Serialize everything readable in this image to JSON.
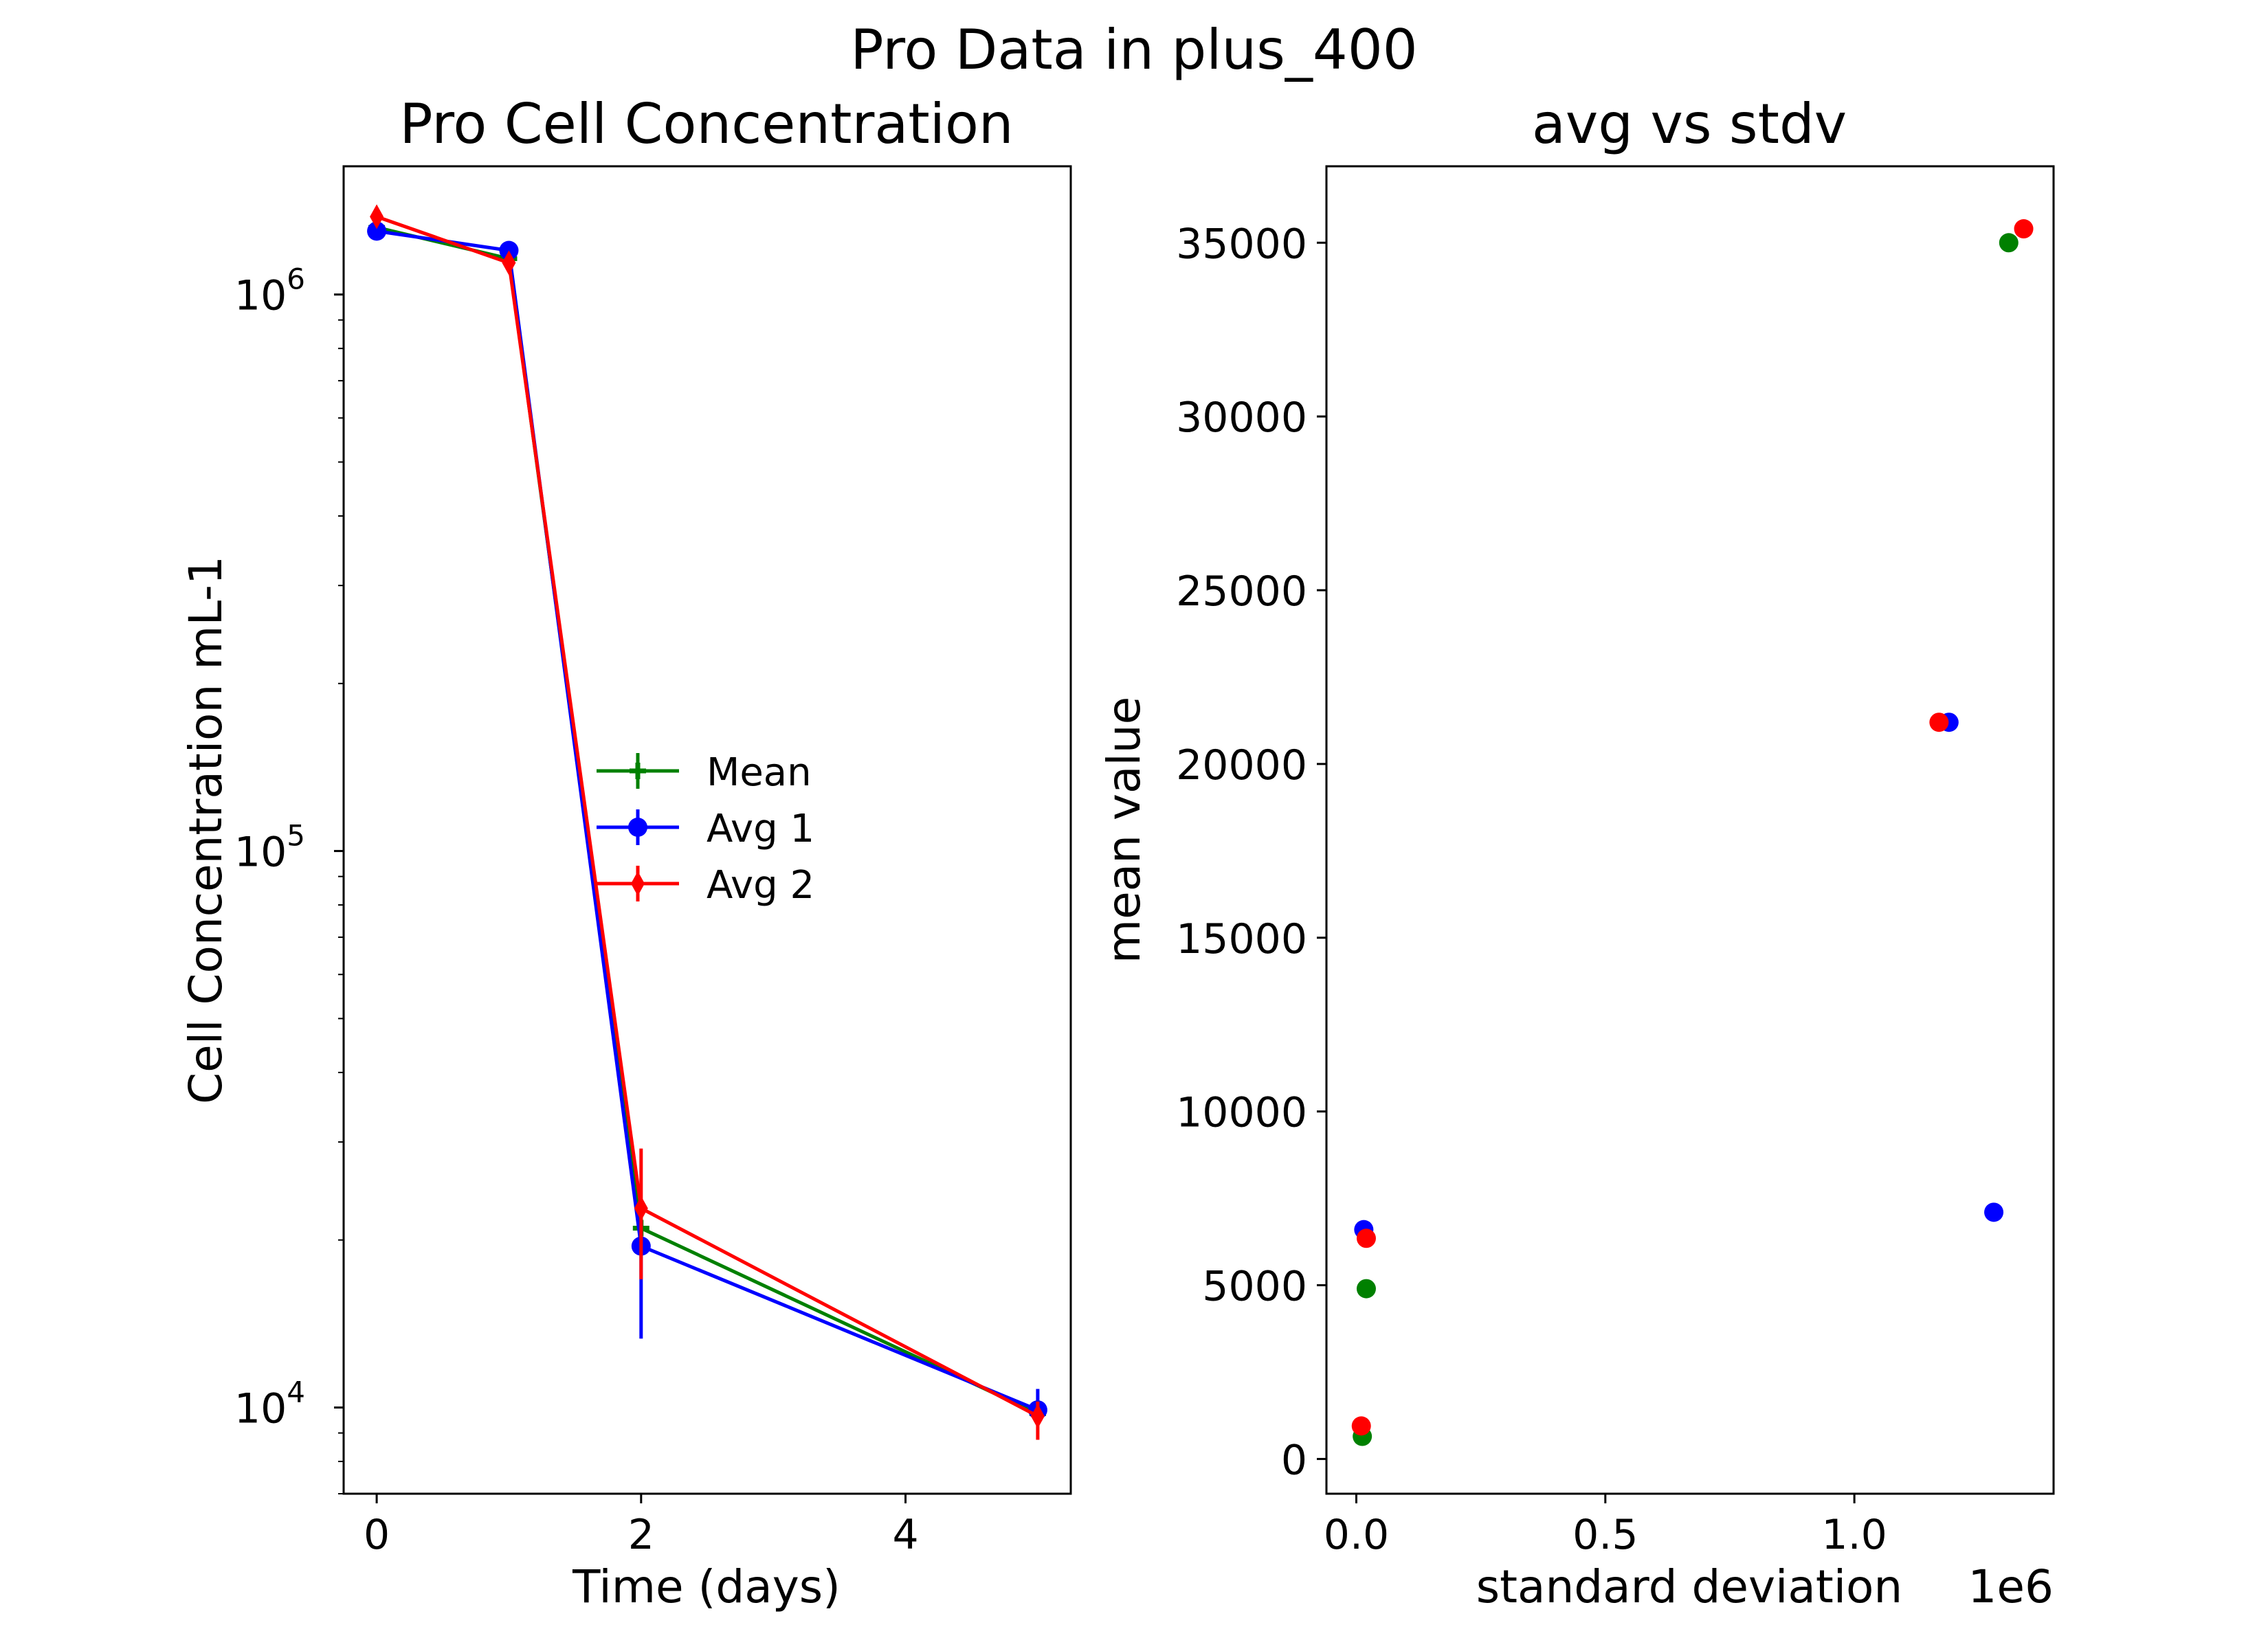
{
  "suptitle": "Pro Data in plus_400",
  "colors": {
    "mean": "#008000",
    "avg1": "#0000ff",
    "avg2": "#ff0000"
  },
  "chart_data": [
    {
      "type": "line",
      "title": "Pro Cell Concentration",
      "xlabel": "Time (days)",
      "ylabel": "Cell Concentration mL-1",
      "yscale": "log",
      "xlim": [
        -0.25,
        5.25
      ],
      "ylim": [
        7000,
        1700000
      ],
      "xticks": [
        0,
        2,
        4
      ],
      "xtick_labels": [
        "0",
        "2",
        "4"
      ],
      "yticks": [
        10000,
        100000,
        1000000
      ],
      "ytick_labels": [
        {
          "base": "10",
          "exp": "4"
        },
        {
          "base": "10",
          "exp": "5"
        },
        {
          "base": "10",
          "exp": "6"
        }
      ],
      "legend_position": "center",
      "error_bars": true,
      "series": [
        {
          "name": "Mean",
          "marker": "plus",
          "color": "#008000",
          "x": [
            0,
            1,
            2,
            5
          ],
          "y": [
            1320000,
            1160000,
            21000,
            9750
          ],
          "yerr_low": [
            0,
            0,
            1000,
            400
          ],
          "yerr_high": [
            0,
            0,
            1000,
            400
          ]
        },
        {
          "name": "Avg 1",
          "marker": "circle",
          "color": "#0000ff",
          "x": [
            0,
            1,
            2,
            5
          ],
          "y": [
            1300000,
            1200000,
            19500,
            9900
          ],
          "yerr_low": [
            0,
            0,
            6200,
            600
          ],
          "yerr_high": [
            0,
            0,
            0,
            900
          ]
        },
        {
          "name": "Avg 2",
          "marker": "diamond",
          "color": "#ff0000",
          "x": [
            0,
            1,
            2,
            5
          ],
          "y": [
            1380000,
            1140000,
            22800,
            9650
          ],
          "yerr_low": [
            0,
            0,
            5800,
            900
          ],
          "yerr_high": [
            0,
            0,
            6400,
            600
          ]
        }
      ]
    },
    {
      "type": "scatter",
      "title": "avg vs stdv",
      "xlabel": "standard deviation",
      "ylabel": "mean value",
      "x_offset_label": "1e6",
      "xlim": [
        -0.06,
        1.4
      ],
      "ylim": [
        -1000,
        37200
      ],
      "xticks": [
        0.0,
        0.5,
        1.0
      ],
      "xtick_labels": [
        "0.0",
        "0.5",
        "1.0"
      ],
      "yticks": [
        0,
        5000,
        10000,
        15000,
        20000,
        25000,
        30000,
        35000
      ],
      "ytick_labels": [
        "0",
        "5000",
        "10000",
        "15000",
        "20000",
        "25000",
        "30000",
        "35000"
      ],
      "series": [
        {
          "name": "Mean",
          "color": "#008000",
          "points": [
            [
              0.012,
              650
            ],
            [
              0.02,
              4900
            ],
            [
              1.31,
              35000
            ]
          ]
        },
        {
          "name": "Avg 1",
          "color": "#0000ff",
          "points": [
            [
              0.015,
              6600
            ],
            [
              1.19,
              21200
            ],
            [
              1.28,
              7100
            ]
          ]
        },
        {
          "name": "Avg 2",
          "color": "#ff0000",
          "points": [
            [
              0.01,
              950
            ],
            [
              0.02,
              6350
            ],
            [
              1.17,
              21200
            ],
            [
              1.34,
              35400
            ]
          ]
        }
      ]
    }
  ]
}
